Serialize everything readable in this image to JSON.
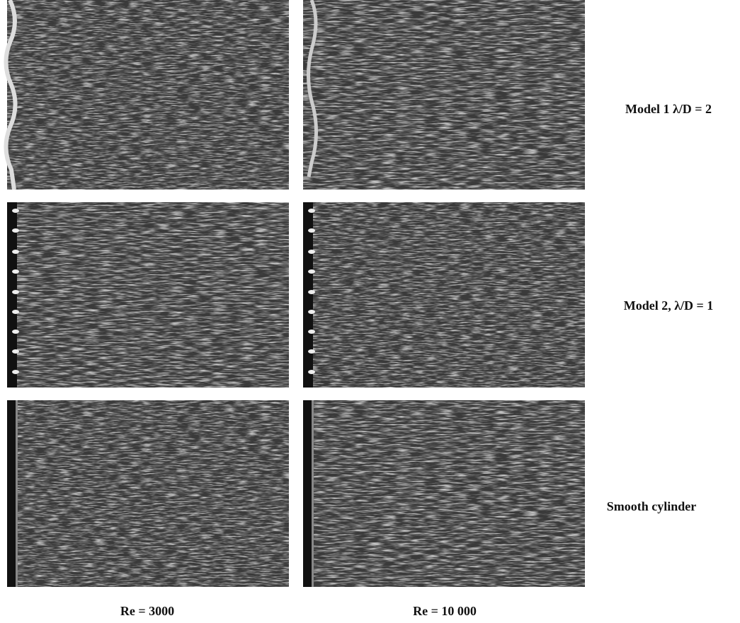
{
  "figure": {
    "column_labels": [
      "Re = 3000",
      "Re = 10 000"
    ],
    "row_labels": [
      "Model 1 λ/D = 2",
      "Model 2, λ/D = 1",
      "Smooth cylinder"
    ]
  }
}
